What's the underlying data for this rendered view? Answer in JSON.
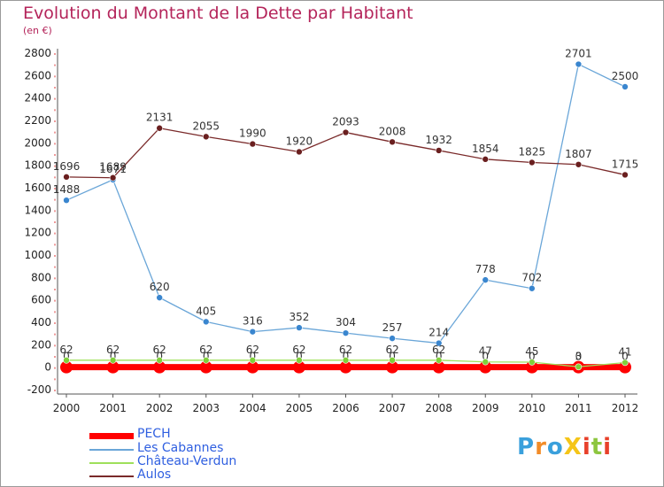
{
  "header": {
    "title": "Evolution du Montant de la Dette par Habitant",
    "subtitle": "(en €)"
  },
  "colors": {
    "title": "#b4245a",
    "axis": "#555555",
    "grid_dots": "#dd3333",
    "legend_text": "#2f5fe0"
  },
  "logo": {
    "text": "ProXiti",
    "letters": [
      {
        "ch": "P",
        "color": "#3aa0dc"
      },
      {
        "ch": "r",
        "color": "#f28c28"
      },
      {
        "ch": "o",
        "color": "#3aa0dc"
      },
      {
        "ch": "X",
        "color": "#f5c518"
      },
      {
        "ch": "i",
        "color": "#e8402a"
      },
      {
        "ch": "t",
        "color": "#8dc63f"
      },
      {
        "ch": "i",
        "color": "#e8402a"
      }
    ]
  },
  "chart_data": {
    "type": "line",
    "title": "Evolution du Montant de la Dette par Habitant",
    "subtitle": "(en €)",
    "x": [
      2000,
      2001,
      2002,
      2003,
      2004,
      2005,
      2006,
      2007,
      2008,
      2009,
      2010,
      2011,
      2012
    ],
    "ylim": [
      -200,
      2800
    ],
    "yticks": [
      -200,
      0,
      200,
      400,
      600,
      800,
      1000,
      1200,
      1400,
      1600,
      1800,
      2000,
      2200,
      2400,
      2600,
      2800
    ],
    "legend_position": "bottom-left",
    "series": [
      {
        "name": "PECH",
        "color": "#ff0000",
        "line_width": 7,
        "marker_size": 7,
        "values": [
          0,
          0,
          0,
          0,
          0,
          0,
          0,
          0,
          0,
          0,
          0,
          0,
          0
        ],
        "labels": [
          "0",
          "0",
          "0",
          "0",
          "0",
          "0",
          "0",
          "0",
          "0",
          "0",
          "0",
          "0",
          "0"
        ]
      },
      {
        "name": "Les Cabannes",
        "color": "#6aa6d8",
        "marker_color": "#3a86cf",
        "line_width": 1.3,
        "marker_size": 3.5,
        "values": [
          1488,
          1671,
          620,
          405,
          316,
          352,
          304,
          257,
          214,
          778,
          702,
          2701,
          2500
        ],
        "labels": [
          "1488",
          "1671",
          "620",
          "405",
          "316",
          "352",
          "304",
          "257",
          "214",
          "778",
          "702",
          "2701",
          "2500"
        ]
      },
      {
        "name": "Château-Verdun",
        "color": "#9ee05a",
        "marker_color": "#7fd03a",
        "line_width": 1.3,
        "marker_size": 3.5,
        "values": [
          62,
          62,
          62,
          62,
          62,
          62,
          62,
          62,
          62,
          47,
          45,
          3,
          41
        ],
        "labels": [
          "62",
          "62",
          "62",
          "62",
          "62",
          "62",
          "62",
          "62",
          "62",
          "47",
          "45",
          "3",
          "41"
        ]
      },
      {
        "name": "Aulos",
        "color": "#7a2a2a",
        "marker_color": "#6a1f1f",
        "line_width": 1.3,
        "marker_size": 3.5,
        "values": [
          1696,
          1689,
          2131,
          2055,
          1990,
          1920,
          2093,
          2008,
          1932,
          1854,
          1825,
          1807,
          1715
        ],
        "labels": [
          "1696",
          "1689",
          "2131",
          "2055",
          "1990",
          "1920",
          "2093",
          "2008",
          "1932",
          "1854",
          "1825",
          "1807",
          "1715"
        ]
      }
    ]
  }
}
